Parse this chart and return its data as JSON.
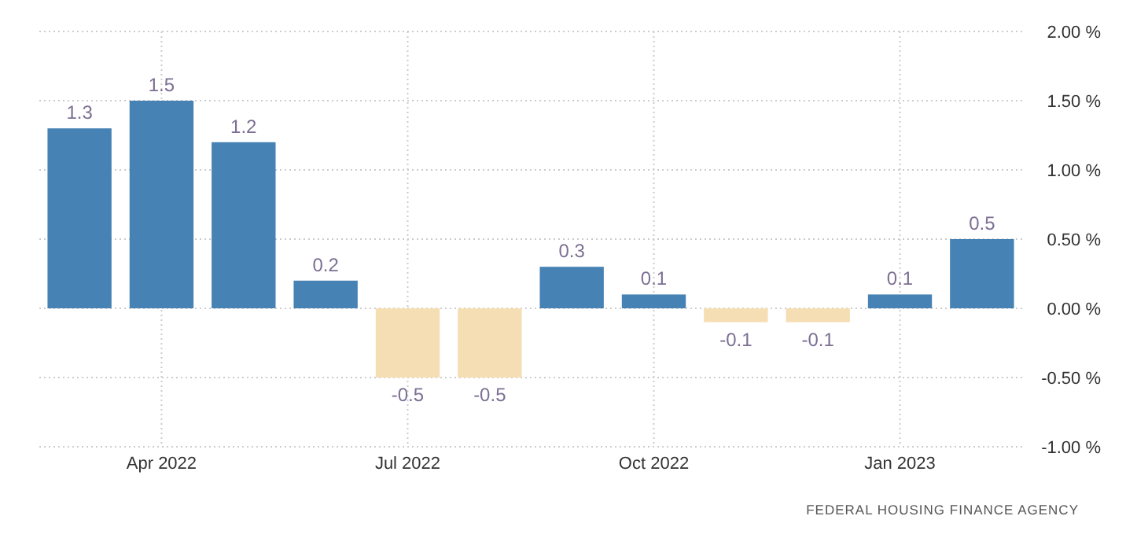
{
  "chart_data": {
    "type": "bar",
    "categories": [
      null,
      "Apr 2022",
      null,
      null,
      "Jul 2022",
      null,
      null,
      "Oct 2022",
      null,
      null,
      "Jan 2023",
      null
    ],
    "values": [
      1.3,
      1.5,
      1.2,
      0.2,
      -0.5,
      -0.5,
      0.3,
      0.1,
      -0.1,
      -0.1,
      0.1,
      0.5
    ],
    "colors": [
      "#4682b4",
      "#4682b4",
      "#4682b4",
      "#4682b4",
      "#f5deb3",
      "#f5deb3",
      "#4682b4",
      "#4682b4",
      "#f5deb3",
      "#f5deb3",
      "#4682b4",
      "#4682b4"
    ],
    "ylim": [
      -1,
      2
    ],
    "yticks": [
      {
        "value": -1,
        "label": "-1.00 %"
      },
      {
        "value": -0.5,
        "label": "-0.50 %"
      },
      {
        "value": 0,
        "label": "0.00 %"
      },
      {
        "value": 0.5,
        "label": "0.50 %"
      },
      {
        "value": 1,
        "label": "1.00 %"
      },
      {
        "value": 1.5,
        "label": "1.50 %"
      },
      {
        "value": 2,
        "label": "2.00 %"
      }
    ],
    "grid": true,
    "data_labels": true,
    "annotations": [
      "FEDERAL HOUSING FINANCE AGENCY"
    ]
  }
}
